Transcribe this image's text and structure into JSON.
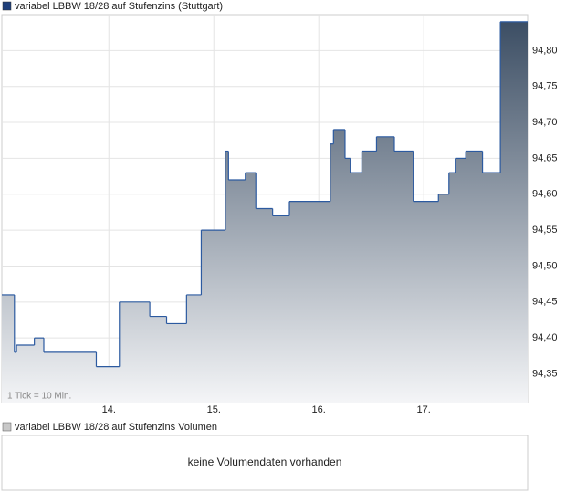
{
  "chart_data": {
    "type": "step-area",
    "title": "variabel LBBW 18/28 auf Stufenzins (Stuttgart)",
    "note": "1 Tick = 10 Min.",
    "x": [
      12.98,
      13.1,
      13.12,
      13.29,
      13.38,
      13.88,
      14.1,
      14.39,
      14.55,
      14.74,
      14.88,
      15.11,
      15.14,
      15.3,
      15.4,
      15.56,
      15.72,
      16.11,
      16.14,
      16.25,
      16.3,
      16.41,
      16.55,
      16.72,
      16.9,
      17.14,
      17.24,
      17.3,
      17.4,
      17.56,
      17.73,
      17.99
    ],
    "series": [
      {
        "name": "variabel LBBW 18/28 auf Stufenzins (Stuttgart)",
        "color": "#2c5aa0",
        "values": [
          94.46,
          94.38,
          94.39,
          94.4,
          94.38,
          94.36,
          94.45,
          94.43,
          94.42,
          94.46,
          94.55,
          94.66,
          94.62,
          94.63,
          94.58,
          94.57,
          94.59,
          94.67,
          94.69,
          94.65,
          94.63,
          94.66,
          94.68,
          94.66,
          94.59,
          94.6,
          94.63,
          94.65,
          94.66,
          94.63,
          94.84,
          94.84
        ]
      }
    ],
    "fill_top": "#3c4e64",
    "fill_bottom": "#f4f5f7",
    "legend_color": "#1f3f7a",
    "xlim": [
      12.98,
      17.99
    ],
    "xticks": [
      {
        "value": 14,
        "label": "14."
      },
      {
        "value": 15,
        "label": "15."
      },
      {
        "value": 16,
        "label": "16."
      },
      {
        "value": 17,
        "label": "17."
      }
    ],
    "ylim": [
      94.31,
      94.85
    ],
    "yticks": [
      {
        "value": 94.35,
        "label": "94,35"
      },
      {
        "value": 94.4,
        "label": "94,40"
      },
      {
        "value": 94.45,
        "label": "94,45"
      },
      {
        "value": 94.5,
        "label": "94,50"
      },
      {
        "value": 94.55,
        "label": "94,55"
      },
      {
        "value": 94.6,
        "label": "94,60"
      },
      {
        "value": 94.65,
        "label": "94,65"
      },
      {
        "value": 94.7,
        "label": "94,70"
      },
      {
        "value": 94.75,
        "label": "94,75"
      },
      {
        "value": 94.8,
        "label": "94,80"
      }
    ],
    "grid": true,
    "volume": {
      "title": "variabel LBBW 18/28 auf Stufenzins Volumen",
      "message": "keine Volumendaten vorhanden",
      "legend_color": "#c8c8c8"
    }
  }
}
